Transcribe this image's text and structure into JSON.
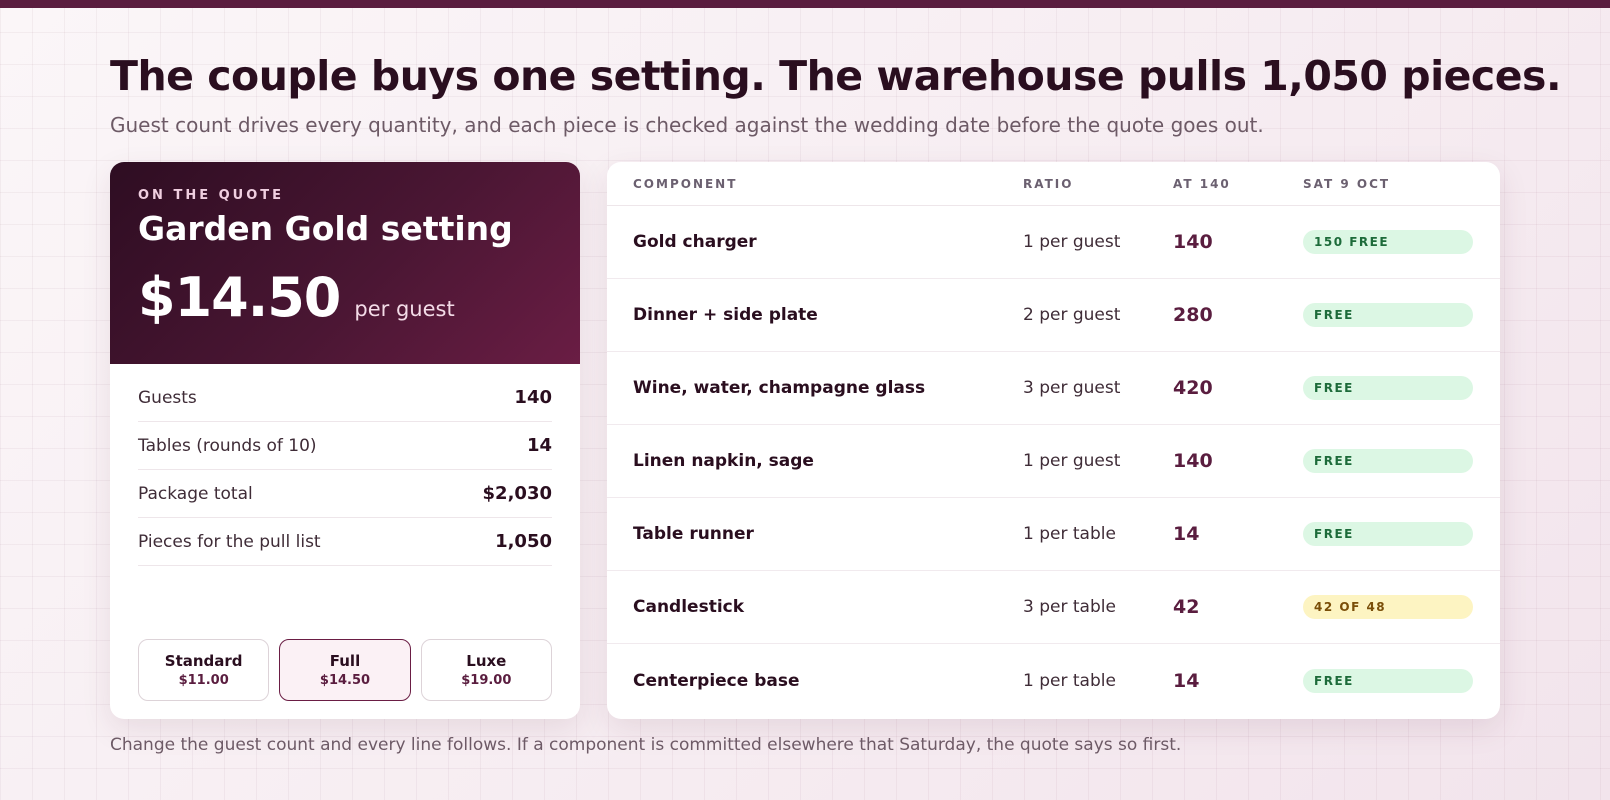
{
  "headline": "The couple buys one setting. The warehouse pulls 1,050 pieces.",
  "subline": "Guest count drives every quantity, and each piece is checked against the wedding date before the quote goes out.",
  "quote_card": {
    "eyebrow": "ON THE QUOTE",
    "title": "Garden Gold setting",
    "price": "$14.50",
    "price_unit": "per guest",
    "stats": [
      {
        "label": "Guests",
        "value": "140"
      },
      {
        "label": "Tables (rounds of 10)",
        "value": "14"
      },
      {
        "label": "Package total",
        "value": "$2,030"
      },
      {
        "label": "Pieces for the pull list",
        "value": "1,050"
      }
    ],
    "tiers": [
      {
        "name": "Standard",
        "price": "$11.00"
      },
      {
        "name": "Full",
        "price": "$14.50"
      },
      {
        "name": "Luxe",
        "price": "$19.00"
      }
    ],
    "active_tier": "Full"
  },
  "pull_table": {
    "headers": {
      "component": "COMPONENT",
      "ratio": "RATIO",
      "qty": "AT 140",
      "date": "SAT 9 OCT"
    },
    "rows": [
      {
        "component": "Gold charger",
        "ratio": "1 per guest",
        "qty": "140",
        "status": "150 FREE",
        "status_type": "free"
      },
      {
        "component": "Dinner + side plate",
        "ratio": "2 per guest",
        "qty": "280",
        "status": "FREE",
        "status_type": "free"
      },
      {
        "component": "Wine, water, champagne glass",
        "ratio": "3 per guest",
        "qty": "420",
        "status": "FREE",
        "status_type": "free"
      },
      {
        "component": "Linen napkin, sage",
        "ratio": "1 per guest",
        "qty": "140",
        "status": "FREE",
        "status_type": "free"
      },
      {
        "component": "Table runner",
        "ratio": "1 per table",
        "qty": "14",
        "status": "FREE",
        "status_type": "free"
      },
      {
        "component": "Candlestick",
        "ratio": "3 per table",
        "qty": "42",
        "status": "42 OF 48",
        "status_type": "warn"
      },
      {
        "component": "Centerpiece base",
        "ratio": "1 per table",
        "qty": "14",
        "status": "FREE",
        "status_type": "free"
      }
    ]
  },
  "footnote": "Change the guest count and every line follows. If a component is committed elsewhere that Saturday, the quote says so first.",
  "colors": {
    "accent": "#5a1d3f",
    "free_bg": "#dcf7e4",
    "warn_bg": "#fdf4c2"
  }
}
